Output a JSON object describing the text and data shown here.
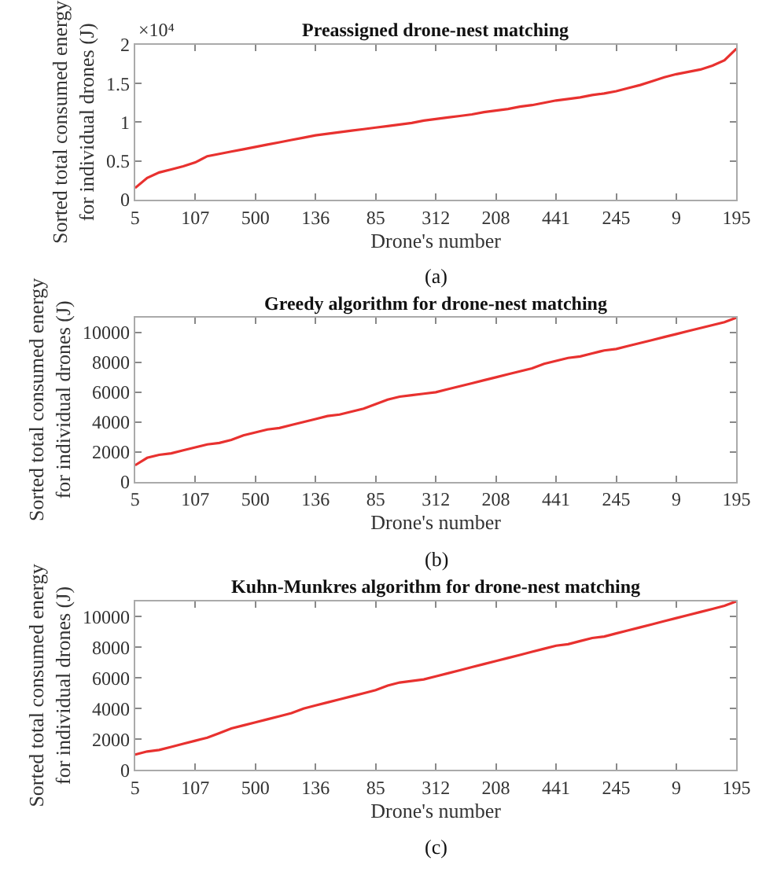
{
  "chart_data": [
    {
      "type": "line",
      "title": "Preassigned drone-nest matching",
      "xlabel": "Drone's number",
      "ylabel": "Sorted total consumed energy\nfor individual drones (J)",
      "annotations": [
        "×10⁴",
        "(a)"
      ],
      "categories": [
        "5",
        null,
        null,
        null,
        null,
        "107",
        null,
        null,
        null,
        null,
        "500",
        null,
        null,
        null,
        null,
        "136",
        null,
        null,
        null,
        null,
        "85",
        null,
        null,
        null,
        null,
        "312",
        null,
        null,
        null,
        null,
        "208",
        null,
        null,
        null,
        null,
        "441",
        null,
        null,
        null,
        null,
        "245",
        null,
        null,
        null,
        null,
        "9",
        null,
        null,
        null,
        null,
        "195"
      ],
      "series": [
        {
          "color": "#e8312f",
          "values": [
            0.15,
            0.28,
            0.35,
            0.39,
            0.43,
            0.48,
            0.56,
            0.59,
            0.62,
            0.65,
            0.68,
            0.71,
            0.74,
            0.77,
            0.8,
            0.83,
            0.85,
            0.87,
            0.89,
            0.91,
            0.93,
            0.95,
            0.97,
            0.99,
            1.02,
            1.04,
            1.06,
            1.08,
            1.1,
            1.13,
            1.15,
            1.17,
            1.2,
            1.22,
            1.25,
            1.28,
            1.3,
            1.32,
            1.35,
            1.37,
            1.4,
            1.44,
            1.48,
            1.53,
            1.58,
            1.62,
            1.65,
            1.68,
            1.73,
            1.8,
            1.95
          ]
        }
      ],
      "ylim": [
        0,
        2
      ],
      "yticks": [
        0,
        0.5,
        1,
        1.5,
        2
      ]
    },
    {
      "type": "line",
      "title": "Greedy algorithm for drone-nest matching",
      "xlabel": "Drone's number",
      "ylabel": "Sorted total consumed energy\nfor individual drones (J)",
      "annotations": [
        "(b)"
      ],
      "categories": [
        "5",
        null,
        null,
        null,
        null,
        "107",
        null,
        null,
        null,
        null,
        "500",
        null,
        null,
        null,
        null,
        "136",
        null,
        null,
        null,
        null,
        "85",
        null,
        null,
        null,
        null,
        "312",
        null,
        null,
        null,
        null,
        "208",
        null,
        null,
        null,
        null,
        "441",
        null,
        null,
        null,
        null,
        "245",
        null,
        null,
        null,
        null,
        "9",
        null,
        null,
        null,
        null,
        "195"
      ],
      "series": [
        {
          "color": "#e8312f",
          "values": [
            1100,
            1600,
            1800,
            1900,
            2100,
            2300,
            2500,
            2600,
            2800,
            3100,
            3300,
            3500,
            3600,
            3800,
            4000,
            4200,
            4400,
            4500,
            4700,
            4900,
            5200,
            5500,
            5700,
            5800,
            5900,
            6000,
            6200,
            6400,
            6600,
            6800,
            7000,
            7200,
            7400,
            7600,
            7900,
            8100,
            8300,
            8400,
            8600,
            8800,
            8900,
            9100,
            9300,
            9500,
            9700,
            9900,
            10100,
            10300,
            10500,
            10700,
            11000
          ]
        }
      ],
      "ylim": [
        0,
        11000
      ],
      "yticks": [
        0,
        2000,
        4000,
        6000,
        8000,
        10000
      ]
    },
    {
      "type": "line",
      "title": "Kuhn-Munkres algorithm for drone-nest matching",
      "xlabel": "Drone's number",
      "ylabel": "Sorted total consumed energy\nfor individual drones (J)",
      "annotations": [
        "(c)"
      ],
      "categories": [
        "5",
        null,
        null,
        null,
        null,
        "107",
        null,
        null,
        null,
        null,
        "500",
        null,
        null,
        null,
        null,
        "136",
        null,
        null,
        null,
        null,
        "85",
        null,
        null,
        null,
        null,
        "312",
        null,
        null,
        null,
        null,
        "208",
        null,
        null,
        null,
        null,
        "441",
        null,
        null,
        null,
        null,
        "245",
        null,
        null,
        null,
        null,
        "9",
        null,
        null,
        null,
        null,
        "195"
      ],
      "series": [
        {
          "color": "#e8312f",
          "values": [
            1000,
            1200,
            1300,
            1500,
            1700,
            1900,
            2100,
            2400,
            2700,
            2900,
            3100,
            3300,
            3500,
            3700,
            4000,
            4200,
            4400,
            4600,
            4800,
            5000,
            5200,
            5500,
            5700,
            5800,
            5900,
            6100,
            6300,
            6500,
            6700,
            6900,
            7100,
            7300,
            7500,
            7700,
            7900,
            8100,
            8200,
            8400,
            8600,
            8700,
            8900,
            9100,
            9300,
            9500,
            9700,
            9900,
            10100,
            10300,
            10500,
            10700,
            11000
          ]
        }
      ],
      "ylim": [
        0,
        11000
      ],
      "yticks": [
        0,
        2000,
        4000,
        6000,
        8000,
        10000
      ]
    }
  ]
}
